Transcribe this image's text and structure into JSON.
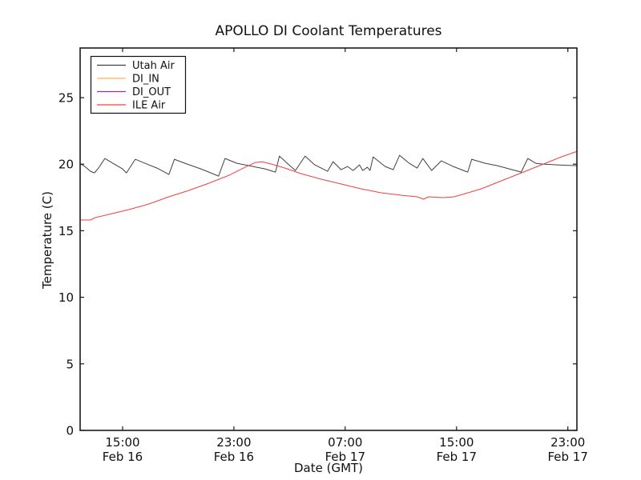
{
  "figure": {
    "background": "#ffffff",
    "frame_color": "#1a1a1a",
    "text_color": "#111111"
  },
  "chart_data": {
    "type": "line",
    "title": "APOLLO DI Coolant Temperatures",
    "xlabel": "Date (GMT)",
    "ylabel": "Temperature (C)",
    "x_unit": "hours since Feb 16 00:00 GMT",
    "xlim": [
      11.95,
      47.65
    ],
    "ylim": [
      0,
      28.73
    ],
    "yticks": [
      0,
      5,
      10,
      15,
      20,
      25
    ],
    "xticks": [
      {
        "hour": 15,
        "time": "15:00",
        "date": "Feb 16"
      },
      {
        "hour": 23,
        "time": "23:00",
        "date": "Feb 16"
      },
      {
        "hour": 31,
        "time": "07:00",
        "date": "Feb 17"
      },
      {
        "hour": 39,
        "time": "15:00",
        "date": "Feb 17"
      },
      {
        "hour": 47,
        "time": "23:00",
        "date": "Feb 17"
      }
    ],
    "grid": false,
    "legend": {
      "position": "upper left",
      "entries": [
        "Utah Air",
        "DI_IN",
        "DI_OUT",
        "ILE Air"
      ]
    },
    "series": [
      {
        "name": "Utah Air",
        "color": "#404040",
        "x": [
          12.0,
          12.29,
          12.69,
          12.98,
          13.27,
          13.73,
          14.3,
          14.99,
          15.28,
          15.91,
          16.6,
          17.47,
          18.33,
          18.73,
          19.48,
          20.63,
          21.9,
          22.36,
          23.22,
          24.09,
          25.24,
          25.99,
          26.27,
          26.96,
          27.42,
          28.12,
          28.81,
          29.73,
          30.13,
          30.71,
          31.17,
          31.57,
          32.03,
          32.26,
          32.6,
          32.78,
          33.01,
          33.87,
          34.45,
          34.91,
          35.6,
          36.17,
          36.58,
          37.21,
          37.9,
          38.76,
          39.8,
          40.09,
          41.06,
          41.93,
          42.79,
          43.65,
          44.12,
          44.69,
          45.21,
          46.24,
          47.68
        ],
        "y": [
          20.01,
          19.83,
          19.47,
          19.35,
          19.71,
          20.43,
          20.07,
          19.65,
          19.35,
          20.37,
          20.07,
          19.71,
          19.23,
          20.37,
          20.07,
          19.65,
          19.11,
          20.43,
          20.07,
          19.89,
          19.65,
          19.41,
          20.61,
          19.95,
          19.53,
          20.61,
          19.95,
          19.47,
          20.19,
          19.59,
          19.83,
          19.53,
          19.95,
          19.53,
          19.77,
          19.53,
          20.55,
          19.83,
          19.59,
          20.67,
          20.07,
          19.71,
          20.43,
          19.53,
          20.25,
          19.83,
          19.41,
          20.37,
          20.07,
          19.89,
          19.65,
          19.41,
          20.43,
          20.07,
          20.01,
          19.95,
          19.89
        ]
      },
      {
        "name": "DI_IN",
        "color": "#ffb347",
        "x": [],
        "y": []
      },
      {
        "name": "DI_OUT",
        "color": "#993399",
        "x": [],
        "y": []
      },
      {
        "name": "ILE Air",
        "color": "#f04040",
        "x": [
          12.0,
          12.69,
          13.04,
          14.01,
          15.45,
          16.89,
          18.33,
          19.77,
          21.21,
          22.65,
          23.8,
          24.55,
          25.01,
          25.7,
          26.68,
          27.83,
          29.27,
          30.71,
          32.14,
          33.58,
          35.02,
          36.17,
          36.63,
          36.98,
          38.01,
          38.82,
          39.63,
          40.78,
          41.93,
          43.37,
          44.52,
          45.38,
          46.53,
          47.68
        ],
        "y": [
          15.81,
          15.81,
          15.99,
          16.23,
          16.59,
          17.01,
          17.55,
          18.03,
          18.57,
          19.17,
          19.77,
          20.13,
          20.19,
          20.01,
          19.71,
          19.29,
          18.87,
          18.51,
          18.15,
          17.85,
          17.67,
          17.55,
          17.37,
          17.55,
          17.49,
          17.55,
          17.79,
          18.15,
          18.63,
          19.23,
          19.71,
          20.07,
          20.55,
          20.97
        ]
      }
    ]
  }
}
